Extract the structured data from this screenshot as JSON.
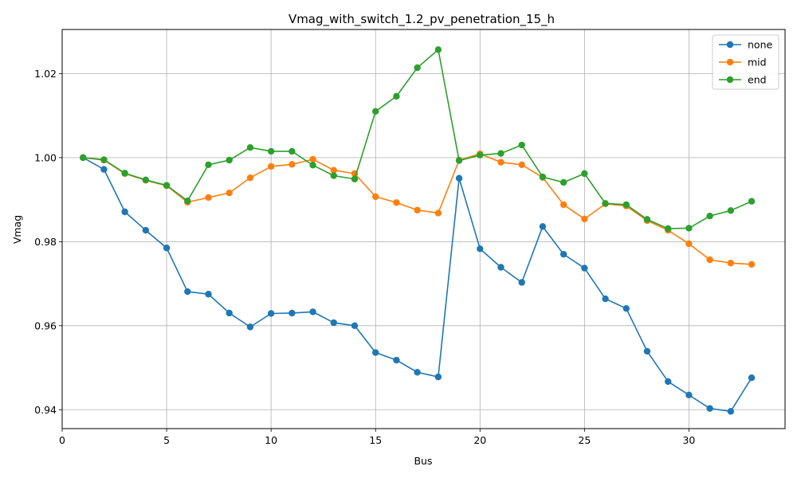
{
  "chart_data": {
    "type": "line",
    "title": "Vmag_with_switch_1.2_pv_penetration_15_h",
    "xlabel": "Bus",
    "ylabel": "Vmag",
    "xlim": [
      0,
      34.6
    ],
    "ylim": [
      0.9355,
      1.0305
    ],
    "xticks": [
      0,
      5,
      10,
      15,
      20,
      25,
      30
    ],
    "xtick_labels": [
      "0",
      "5",
      "10",
      "15",
      "20",
      "25",
      "30"
    ],
    "yticks": [
      0.94,
      0.96,
      0.98,
      1.0,
      1.02
    ],
    "ytick_labels": [
      "0.94",
      "0.96",
      "0.98",
      "1.00",
      "1.02"
    ],
    "grid": true,
    "legend_position": "top-right",
    "x": [
      1,
      2,
      3,
      4,
      5,
      6,
      7,
      8,
      9,
      10,
      11,
      12,
      13,
      14,
      15,
      16,
      17,
      18,
      19,
      20,
      21,
      22,
      23,
      24,
      25,
      26,
      27,
      28,
      29,
      30,
      31,
      32,
      33
    ],
    "series": [
      {
        "name": "none",
        "color": "#1f77b4",
        "values": [
          1.0,
          0.9972,
          0.9871,
          0.9827,
          0.9785,
          0.9681,
          0.9675,
          0.963,
          0.9597,
          0.9629,
          0.963,
          0.9633,
          0.9607,
          0.96,
          0.9536,
          0.9518,
          0.9489,
          0.9478,
          0.9951,
          0.9783,
          0.9739,
          0.9703,
          0.9836,
          0.977,
          0.9737,
          0.9664,
          0.9641,
          0.9539,
          0.9467,
          0.9435,
          0.9403,
          0.9396,
          0.9476
        ]
      },
      {
        "name": "mid",
        "color": "#ff7f0e",
        "values": [
          1.0,
          0.9994,
          0.9962,
          0.9946,
          0.9933,
          0.9894,
          0.9905,
          0.9916,
          0.9952,
          0.9979,
          0.9984,
          0.9996,
          0.997,
          0.9962,
          0.9907,
          0.9893,
          0.9875,
          0.9868,
          0.9994,
          1.0009,
          0.9989,
          0.9983,
          0.9953,
          0.9888,
          0.9854,
          0.989,
          0.9885,
          0.985,
          0.9827,
          0.9795,
          0.9757,
          0.9749,
          0.9746
        ]
      },
      {
        "name": "end",
        "color": "#2ca02c",
        "values": [
          1.0,
          0.9995,
          0.9963,
          0.9947,
          0.9934,
          0.9897,
          0.9983,
          0.9994,
          1.0024,
          1.0015,
          1.0015,
          0.9982,
          0.9957,
          0.9949,
          1.011,
          1.0146,
          1.0214,
          1.0257,
          0.9993,
          1.0006,
          1.001,
          1.003,
          0.9954,
          0.9941,
          0.9962,
          0.9891,
          0.9888,
          0.9853,
          0.9831,
          0.9832,
          0.9861,
          0.9874,
          0.9896
        ]
      }
    ]
  }
}
